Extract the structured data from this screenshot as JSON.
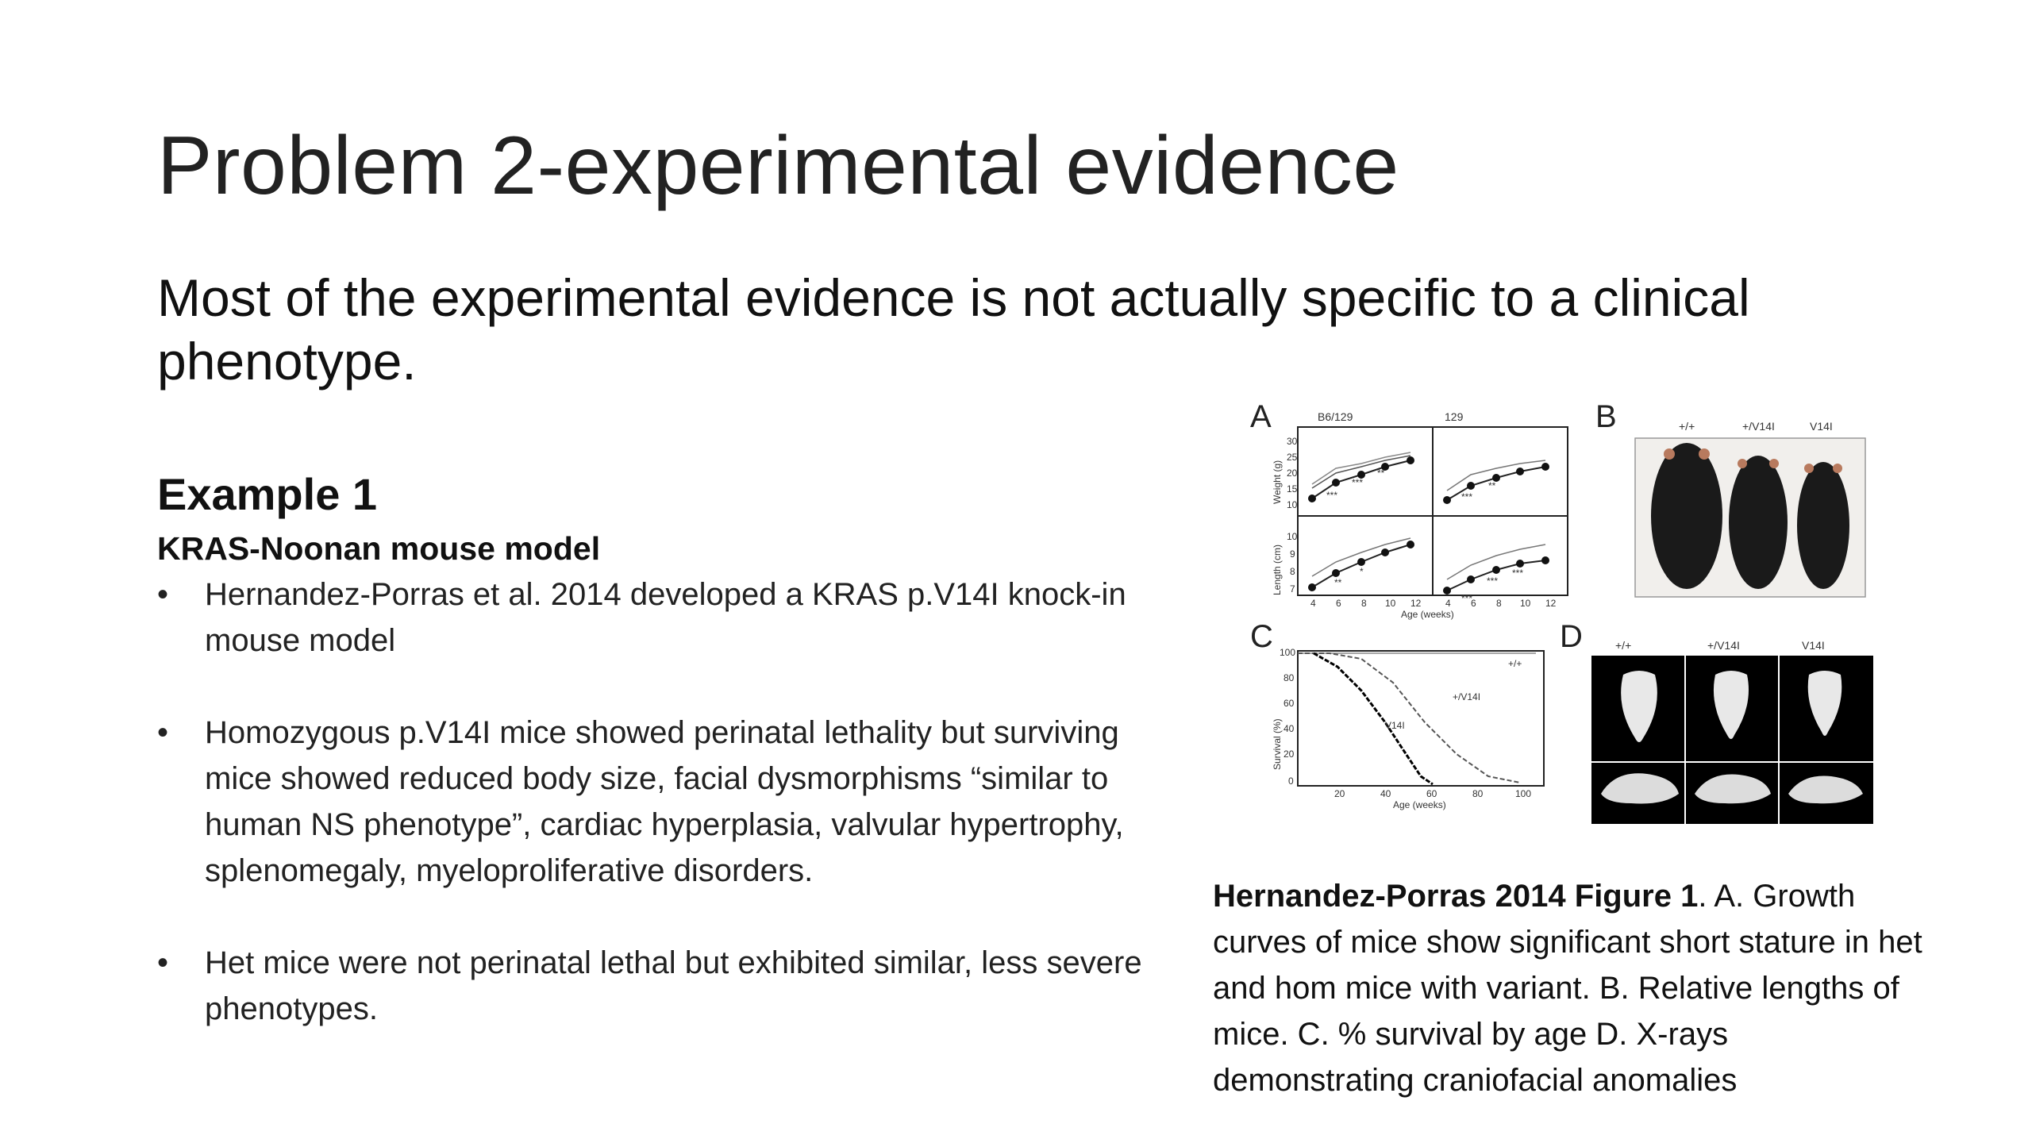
{
  "slide": {
    "title": "Problem 2-experimental evidence",
    "subtitle": "Most of the experimental evidence is not actually specific to a clinical phenotype.",
    "example_heading": "Example 1",
    "model_heading": "KRAS-Noonan mouse model",
    "bullet_char": "•",
    "bullets": [
      "Hernandez-Porras et al. 2014 developed a KRAS p.V14I knock-in mouse model",
      "Homozygous p.V14I mice showed perinatal lethality but surviving mice showed reduced body size, facial dysmorphisms “similar to human NS phenotype”, cardiac hyperplasia, valvular hypertrophy, splenomegaly, myeloproliferative disorders.",
      "Het mice were not perinatal lethal but exhibited similar, less severe phenotypes."
    ]
  },
  "figure": {
    "panel_a": {
      "letter": "A",
      "col1": "B6/129",
      "col2": "129",
      "ylabel_top": "Weight (g)",
      "ylabel_bottom": "Length (cm)",
      "xlabel": "Age (weeks)",
      "yticks_top": [
        "30",
        "25",
        "20",
        "15",
        "10"
      ],
      "yticks_bottom": [
        "10",
        "9",
        "8",
        "7"
      ],
      "xticks": [
        "4",
        "6",
        "8",
        "10",
        "12"
      ],
      "sig": [
        "***",
        "***",
        "**",
        "***",
        "**",
        "**",
        "*",
        "***",
        "***",
        "***"
      ]
    },
    "panel_b": {
      "letter": "B",
      "labels": [
        "+/+",
        "+/V14I",
        "V14I"
      ]
    },
    "panel_c": {
      "letter": "C",
      "ylabel": "Survival (%)",
      "xlabel": "Age (weeks)",
      "yticks": [
        "100",
        "80",
        "60",
        "40",
        "20",
        "0"
      ],
      "xticks": [
        "20",
        "40",
        "60",
        "80",
        "100"
      ],
      "series_labels": [
        "+/+",
        "+/V14I",
        "V14I"
      ]
    },
    "panel_d": {
      "letter": "D",
      "labels": [
        "+/+",
        "+/V14I",
        "V14I"
      ]
    },
    "colors": {
      "dark": "#1a1a1a",
      "photo_bg": "#f1efec",
      "xray_bg": "#000000"
    }
  },
  "caption": {
    "bold": "Hernandez-Porras 2014 Figure 1",
    "text": ". A. Growth curves of mice show significant short stature in het and hom mice with variant. B. Relative lengths of mice. C. % survival by age D. X-rays demonstrating craniofacial anomalies"
  }
}
